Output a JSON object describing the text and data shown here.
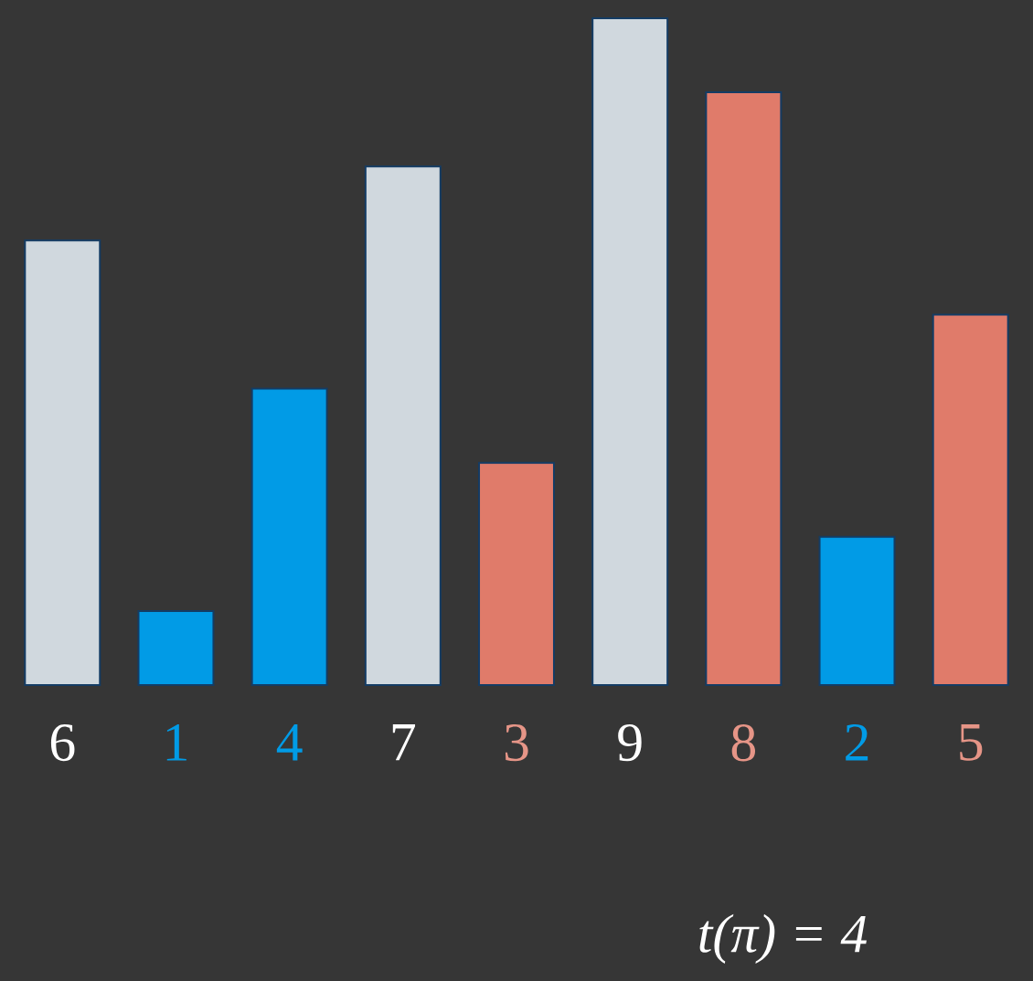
{
  "chart_data": {
    "type": "bar",
    "categories": [
      null,
      null,
      null,
      null,
      null,
      null,
      null,
      null,
      null
    ],
    "values": [
      6,
      1,
      4,
      7,
      3,
      9,
      8,
      2,
      5
    ],
    "colors": [
      "#d0d8de",
      "#019be6",
      "#019be6",
      "#d0d8de",
      "#e07b6a",
      "#d0d8de",
      "#e07b6a",
      "#019be6",
      "#e07b6a"
    ],
    "data_labels": true,
    "annotations": [
      "t(π) = 4"
    ]
  }
}
